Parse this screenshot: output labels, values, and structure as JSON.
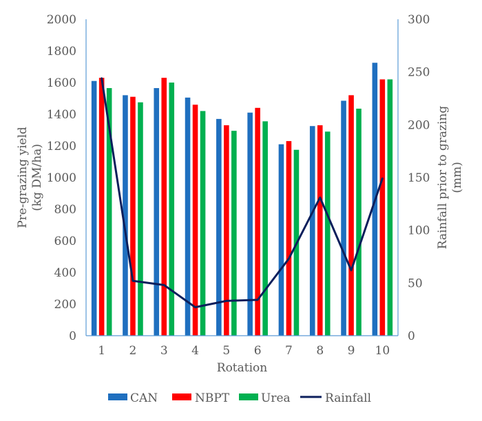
{
  "chart_data": {
    "type": "bar",
    "title": "",
    "categories": [
      "1",
      "2",
      "3",
      "4",
      "5",
      "6",
      "7",
      "8",
      "9",
      "10"
    ],
    "xlabel": "Rotation",
    "ylabel_lines": [
      "Pre-grazing yield",
      "(kg DM/ha)"
    ],
    "y2label_lines": [
      "Rainfall prior to grazing",
      "(mm)"
    ],
    "ylim": [
      0,
      2000
    ],
    "y2lim": [
      0,
      300
    ],
    "yticks": [
      "0",
      "200",
      "400",
      "600",
      "800",
      "1000",
      "1200",
      "1400",
      "1600",
      "1800",
      "2000"
    ],
    "y2ticks": [
      "0",
      "50",
      "100",
      "150",
      "200",
      "250",
      "300"
    ],
    "series": [
      {
        "name": "CAN",
        "kind": "bar",
        "axis": "left",
        "color": "#1F6FBF",
        "values": [
          1610,
          1520,
          1565,
          1505,
          1370,
          1410,
          1210,
          1325,
          1485,
          1725
        ]
      },
      {
        "name": "NBPT",
        "kind": "bar",
        "axis": "left",
        "color": "#FF0000",
        "values": [
          1630,
          1510,
          1630,
          1460,
          1330,
          1440,
          1230,
          1330,
          1520,
          1620
        ]
      },
      {
        "name": "Urea",
        "kind": "bar",
        "axis": "left",
        "color": "#00B050",
        "values": [
          1565,
          1475,
          1600,
          1420,
          1295,
          1355,
          1175,
          1290,
          1435,
          1620
        ]
      },
      {
        "name": "Rainfall",
        "kind": "line",
        "axis": "right",
        "color": "#0C1F5C",
        "values": [
          244,
          52,
          48,
          27,
          33,
          34,
          73,
          131,
          62,
          149
        ]
      }
    ],
    "legend": {
      "position": "bottom",
      "items": [
        "CAN",
        "NBPT",
        "Urea",
        "Rainfall"
      ]
    },
    "grid": false,
    "axis_color": "#5B9BD5"
  }
}
